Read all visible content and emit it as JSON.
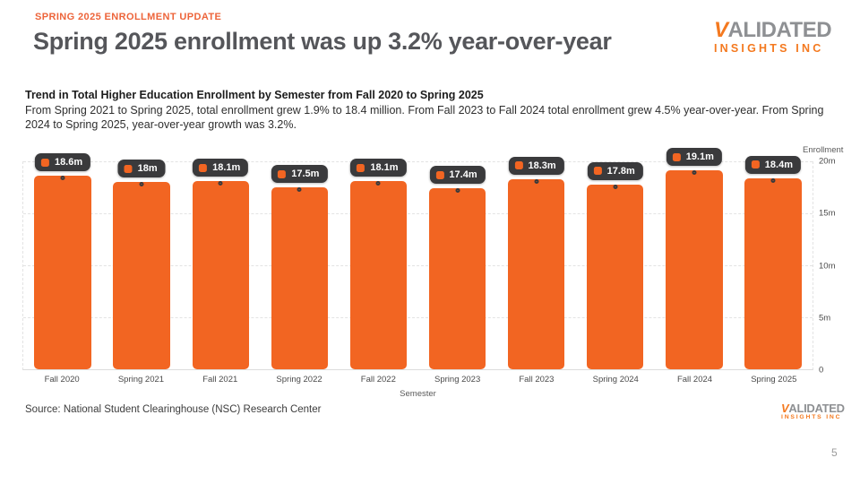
{
  "slide": {
    "kicker": "SPRING 2025 ENROLLMENT UPDATE",
    "title": "Spring 2025 enrollment was up 3.2% year-over-year",
    "source": "Source: National Student Clearinghouse (NSC) Research Center",
    "page_number": "5"
  },
  "logo": {
    "v": "V",
    "rest": "ALIDATED",
    "sub": "INSIGHTS INC"
  },
  "chart_header": {
    "title": "Trend in Total Higher Education Enrollment by Semester from Fall 2020 to Spring 2025",
    "subtitle": "From Spring 2021 to Spring 2025, total enrollment grew 1.9% to 18.4 million. From Fall 2023 to Fall 2024 total enrollment grew 4.5% year-over-year. From Spring 2024 to Spring 2025, year-over-year growth was 3.2%."
  },
  "chart_data": {
    "type": "bar",
    "title": "Trend in Total Higher Education Enrollment by Semester from Fall 2020 to Spring 2025",
    "categories": [
      "Fall 2020",
      "Spring 2021",
      "Fall 2021",
      "Spring 2022",
      "Fall 2022",
      "Spring 2023",
      "Fall 2023",
      "Spring 2024",
      "Fall 2024",
      "Spring 2025"
    ],
    "values": [
      18.6,
      18,
      18.1,
      17.5,
      18.1,
      17.4,
      18.3,
      17.8,
      19.1,
      18.4
    ],
    "value_labels": [
      "18.6m",
      "18m",
      "18.1m",
      "17.5m",
      "18.1m",
      "17.4m",
      "18.3m",
      "17.8m",
      "19.1m",
      "18.4m"
    ],
    "xlabel": "Semester",
    "ylabel": "Enrollment",
    "ylim": [
      0,
      20
    ],
    "yticks": [
      {
        "label": "20m",
        "value": 20
      },
      {
        "label": "15m",
        "value": 15
      },
      {
        "label": "10m",
        "value": 10
      },
      {
        "label": "5m",
        "value": 5
      },
      {
        "label": "0",
        "value": 0
      }
    ],
    "grid": "horizontal-dashed",
    "legend": "none",
    "units": "millions of students"
  },
  "colors": {
    "bar_orange": "#F26522",
    "kicker_orange": "#ED643A",
    "logo_orange": "#F4791F",
    "logo_gray": "#8E9093",
    "title_gray": "#55565A",
    "badge_bg": "#3A3A3C",
    "badge_text": "#FFFFFF",
    "gridline": "#E3E3E3"
  }
}
